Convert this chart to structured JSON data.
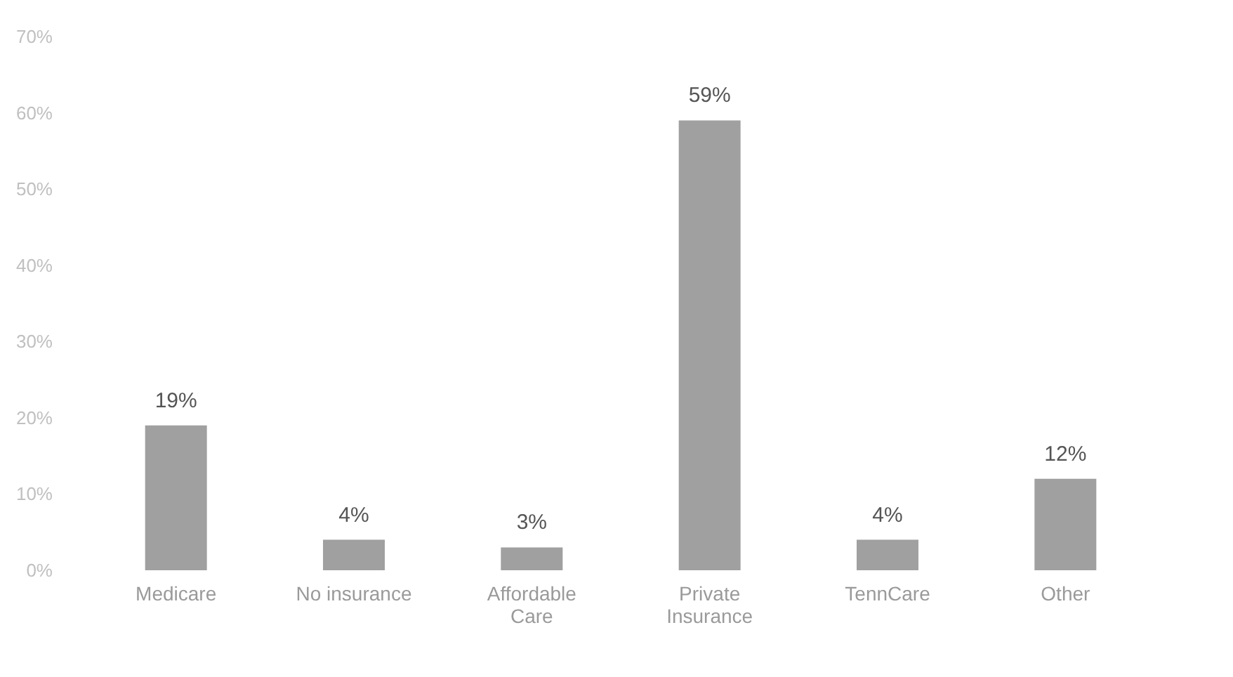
{
  "chart_data": {
    "type": "bar",
    "categories": [
      "Medicare",
      "No insurance",
      "Affordable\nCare",
      "Private\nInsurance",
      "TennCare",
      "Other"
    ],
    "values": [
      19,
      4,
      3,
      59,
      4,
      12
    ],
    "value_labels": [
      "19%",
      "4%",
      "3%",
      "59%",
      "4%",
      "12%"
    ],
    "color": "#a0a0a0",
    "ylim": [
      0,
      70
    ],
    "yticks": [
      {
        "value": 0,
        "label": "0%"
      },
      {
        "value": 10,
        "label": "10%"
      },
      {
        "value": 20,
        "label": "20%"
      },
      {
        "value": 30,
        "label": "30%"
      },
      {
        "value": 40,
        "label": "40%"
      },
      {
        "value": 50,
        "label": "50%"
      },
      {
        "value": 60,
        "label": "60%"
      },
      {
        "value": 70,
        "label": "70%"
      }
    ],
    "grid": false
  }
}
